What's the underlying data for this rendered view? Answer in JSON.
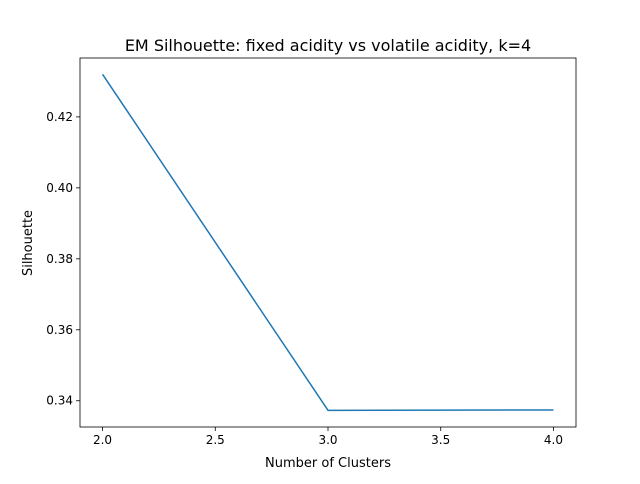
{
  "chart_data": {
    "type": "line",
    "title": "EM Silhouette: fixed acidity vs volatile acidity, k=4",
    "xlabel": "Number of Clusters",
    "ylabel": "Silhouette",
    "xlim": [
      1.9,
      4.1
    ],
    "ylim": [
      0.3326,
      0.4366
    ],
    "xticks": [
      2.0,
      2.5,
      3.0,
      3.5,
      4.0
    ],
    "xtick_labels": [
      "2.0",
      "2.5",
      "3.0",
      "3.5",
      "4.0"
    ],
    "yticks": [
      0.34,
      0.36,
      0.38,
      0.4,
      0.42
    ],
    "ytick_labels": [
      "0.34",
      "0.36",
      "0.38",
      "0.40",
      "0.42"
    ],
    "grid": false,
    "series": [
      {
        "color": "#1f77b4",
        "x": [
          2,
          3,
          4
        ],
        "y": [
          0.432,
          0.3373,
          0.3374
        ]
      }
    ]
  }
}
